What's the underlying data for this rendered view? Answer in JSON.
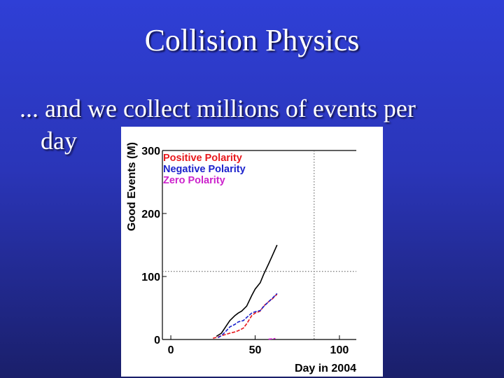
{
  "slide": {
    "title": "Collision Physics",
    "bullet_line1": "... and we collect millions of events per",
    "bullet_line2": "day"
  },
  "colors": {
    "background_top": "#2f3fd6",
    "background_bottom": "#1a1f6a",
    "text": "#ffffff",
    "positive": "#e8181c",
    "negative": "#1c22cc",
    "zero": "#cc22cc",
    "total": "#000000"
  },
  "chart_data": {
    "type": "line",
    "title": "",
    "xlabel": "Day in 2004",
    "ylabel": "Good Events (M)",
    "xlim": [
      -5,
      110
    ],
    "ylim": [
      0,
      300
    ],
    "xticks": [
      0,
      50,
      100
    ],
    "yticks": [
      0,
      100,
      200,
      300
    ],
    "xtick_labels": [
      "0",
      "50",
      "100"
    ],
    "ytick_labels": [
      "0",
      "100",
      "200",
      "300"
    ],
    "grid": false,
    "reference_lines": {
      "vertical_x": 85,
      "horizontal_y": 108
    },
    "legend_position": "top-left",
    "series": [
      {
        "name": "",
        "color_key": "total",
        "dashed": false,
        "x": [
          27,
          30,
          33,
          35,
          38,
          40,
          42,
          45,
          48,
          50,
          53,
          55,
          58,
          60,
          63
        ],
        "y": [
          5,
          10,
          22,
          30,
          38,
          42,
          45,
          53,
          70,
          80,
          90,
          103,
          120,
          132,
          150
        ]
      },
      {
        "name": "Positive Polarity",
        "color_key": "positive",
        "dashed": true,
        "x": [
          25,
          28,
          30,
          35,
          38,
          40,
          43,
          45,
          48,
          50,
          53,
          55,
          58,
          60,
          63
        ],
        "y": [
          2,
          4,
          6,
          10,
          12,
          14,
          18,
          25,
          38,
          42,
          45,
          53,
          60,
          64,
          72
        ]
      },
      {
        "name": "Negative Polarity",
        "color_key": "negative",
        "dashed": true,
        "x": [
          28,
          30,
          33,
          35,
          38,
          40,
          43,
          45,
          48,
          50,
          53,
          55,
          58,
          60,
          63
        ],
        "y": [
          3,
          6,
          14,
          20,
          24,
          28,
          30,
          35,
          42,
          44,
          46,
          52,
          60,
          65,
          73
        ]
      },
      {
        "name": "Zero Polarity",
        "color_key": "zero",
        "dashed": true,
        "x": [
          58,
          60,
          62
        ],
        "y": [
          0.5,
          1,
          1.5
        ]
      }
    ],
    "legend": [
      "Positive Polarity",
      "Negative Polarity",
      "Zero Polarity"
    ]
  }
}
